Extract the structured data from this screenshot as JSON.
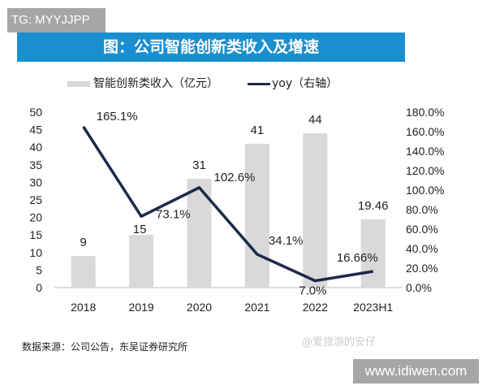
{
  "overlay": {
    "tag": "TG: MYYJJPP",
    "site": "www.idiwen.com",
    "watermark": "@爱旅游的安仔"
  },
  "source": "数据来源：公司公告，东吴证券研究所",
  "chart_data": {
    "type": "bar+line",
    "title": "图：公司智能创新类收入及增速",
    "categories": [
      "2018",
      "2019",
      "2020",
      "2021",
      "2022",
      "2023H1"
    ],
    "series": [
      {
        "name": "智能创新类收入（亿元）",
        "type": "bar",
        "axis": "left",
        "values": [
          9,
          15,
          31,
          41,
          44,
          19.46
        ],
        "labels": [
          "9",
          "15",
          "31",
          "41",
          "44",
          "19.46"
        ],
        "color": "#d9d9d9"
      },
      {
        "name": "yoy（右轴）",
        "type": "line",
        "axis": "right",
        "values": [
          165.1,
          73.1,
          102.6,
          34.1,
          7.0,
          16.66
        ],
        "labels": [
          "165.1%",
          "73.1%",
          "102.6%",
          "34.1%",
          "7.0%",
          "16.66%"
        ],
        "color": "#1c2a4a"
      }
    ],
    "left_axis": {
      "ylim": [
        0,
        50
      ],
      "ticks": [
        "0",
        "5",
        "10",
        "15",
        "20",
        "25",
        "30",
        "35",
        "40",
        "45",
        "50"
      ]
    },
    "right_axis": {
      "ylim": [
        0,
        180
      ],
      "ticks": [
        "0.0%",
        "20.0%",
        "40.0%",
        "60.0%",
        "80.0%",
        "100.0%",
        "120.0%",
        "140.0%",
        "160.0%",
        "180.0%"
      ]
    },
    "grid": false,
    "legend": "top"
  }
}
